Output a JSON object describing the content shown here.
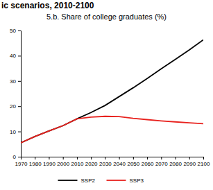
{
  "chart_data": {
    "type": "line",
    "title": "ic scenarios, 2010-2100",
    "subtitle": "5.b. Share of college graduates (%)",
    "x": [
      1970,
      1980,
      1990,
      2000,
      2010,
      2020,
      2030,
      2040,
      2050,
      2060,
      2070,
      2080,
      2090,
      2100
    ],
    "series": [
      {
        "name": "SSP2",
        "color": "#000000",
        "values": [
          5.5,
          8,
          10.2,
          12.3,
          15,
          17.5,
          20.3,
          23.8,
          27.3,
          31,
          34.8,
          38.5,
          42.3,
          46.3
        ]
      },
      {
        "name": "SSP3",
        "color": "#e8221e",
        "values": [
          5.5,
          8,
          10.2,
          12.3,
          15,
          15.7,
          16,
          15.9,
          15.2,
          14.7,
          14.2,
          13.8,
          13.4,
          13.1
        ]
      }
    ],
    "xlim": [
      1970,
      2100
    ],
    "xticks": [
      1970,
      1980,
      1990,
      2000,
      2010,
      2020,
      2030,
      2040,
      2050,
      2060,
      2070,
      2080,
      2090,
      2100
    ],
    "ylim": [
      0,
      50
    ],
    "yticks": [
      0,
      10,
      20,
      30,
      40,
      50
    ],
    "grid": false,
    "legend": "bottom"
  }
}
